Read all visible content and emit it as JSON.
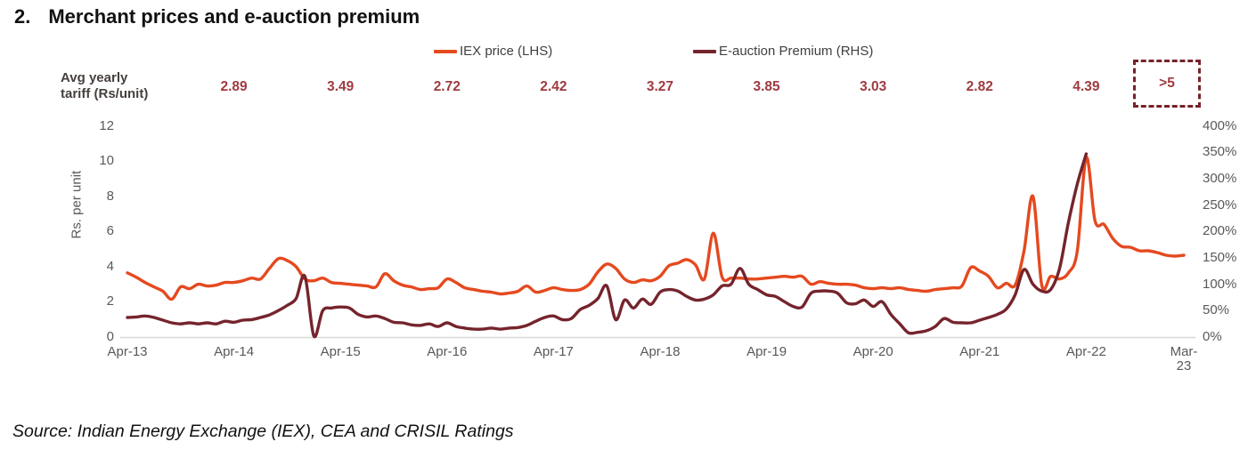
{
  "title": {
    "number": "2.",
    "text": "Merchant prices and e-auction premium"
  },
  "legend": [
    {
      "label": "IEX price (LHS)",
      "color": "#e5491f"
    },
    {
      "label": "E-auction Premium (RHS)",
      "color": "#75242c"
    }
  ],
  "tariff_row": {
    "label_line1": "Avg yearly",
    "label_line2": "tariff (Rs/unit)",
    "values": [
      "2.89",
      "3.49",
      "2.72",
      "2.42",
      "3.27",
      "3.85",
      "3.03",
      "2.82",
      "4.39"
    ],
    "boxed_value": ">5",
    "value_color": "#9f3a40"
  },
  "source": "Source: Indian Energy Exchange (IEX), CEA and CRISIL Ratings",
  "chart_data": {
    "type": "line",
    "title": "Merchant prices and e-auction premium",
    "x_start": "Apr-13",
    "x_tick_labels": [
      "Apr-13",
      "Apr-14",
      "Apr-15",
      "Apr-16",
      "Apr-17",
      "Apr-18",
      "Apr-19",
      "Apr-20",
      "Apr-21",
      "Apr-22",
      "Mar-23"
    ],
    "left_axis": {
      "label": "Rs. per unit",
      "min": 0,
      "max": 12,
      "ticks": [
        0,
        2,
        4,
        6,
        8,
        10,
        12
      ]
    },
    "right_axis": {
      "min": 0,
      "max": 400,
      "ticks": [
        0,
        50,
        100,
        150,
        200,
        250,
        300,
        350,
        400
      ],
      "suffix": "%"
    },
    "grid": false,
    "legend_position": "top",
    "series": [
      {
        "name": "IEX price (LHS)",
        "axis": "left",
        "color": "#e5491f",
        "unit": "Rs/unit",
        "monthly_from": "Apr-13",
        "values": [
          3.65,
          3.4,
          3.1,
          2.85,
          2.6,
          2.15,
          2.85,
          2.75,
          3.0,
          2.9,
          2.95,
          3.1,
          3.1,
          3.2,
          3.35,
          3.3,
          3.9,
          4.45,
          4.35,
          4.0,
          3.3,
          3.2,
          3.35,
          3.1,
          3.05,
          3.0,
          2.95,
          2.9,
          2.85,
          3.6,
          3.2,
          2.95,
          2.85,
          2.7,
          2.75,
          2.8,
          3.3,
          3.1,
          2.8,
          2.7,
          2.6,
          2.55,
          2.45,
          2.5,
          2.6,
          2.9,
          2.55,
          2.65,
          2.8,
          2.7,
          2.65,
          2.7,
          3.0,
          3.7,
          4.15,
          3.9,
          3.3,
          3.1,
          3.25,
          3.2,
          3.45,
          4.05,
          4.2,
          4.4,
          4.1,
          3.3,
          5.9,
          3.4,
          3.35,
          3.35,
          3.3,
          3.3,
          3.35,
          3.4,
          3.45,
          3.4,
          3.45,
          3.0,
          3.15,
          3.05,
          3.0,
          3.0,
          2.95,
          2.8,
          2.75,
          2.8,
          2.75,
          2.8,
          2.7,
          2.65,
          2.6,
          2.7,
          2.75,
          2.8,
          2.9,
          3.95,
          3.75,
          3.45,
          2.8,
          3.05,
          2.95,
          4.9,
          8.0,
          2.95,
          3.45,
          3.3,
          3.65,
          4.9,
          10.2,
          6.6,
          6.4,
          5.6,
          5.15,
          5.1,
          4.9,
          4.9,
          4.8,
          4.65,
          4.6,
          4.65
        ]
      },
      {
        "name": "E-auction Premium (RHS)",
        "axis": "right",
        "color": "#75242c",
        "unit": "%",
        "monthly_from": "Apr-13",
        "ends": "Apr-22",
        "values": [
          37,
          38,
          40,
          37,
          32,
          27,
          25,
          27,
          25,
          27,
          25,
          30,
          28,
          32,
          33,
          37,
          42,
          50,
          60,
          73,
          115,
          2,
          50,
          55,
          57,
          55,
          43,
          38,
          40,
          35,
          28,
          27,
          23,
          22,
          25,
          20,
          27,
          20,
          17,
          15,
          15,
          17,
          15,
          17,
          18,
          22,
          30,
          37,
          40,
          33,
          35,
          52,
          60,
          73,
          97,
          33,
          70,
          55,
          72,
          62,
          85,
          90,
          87,
          77,
          70,
          72,
          80,
          97,
          100,
          130,
          100,
          90,
          80,
          77,
          67,
          58,
          57,
          83,
          87,
          87,
          83,
          65,
          63,
          70,
          58,
          67,
          43,
          25,
          8,
          9,
          12,
          20,
          35,
          28,
          27,
          27,
          32,
          37,
          43,
          53,
          80,
          128,
          100,
          87,
          90,
          130,
          217,
          290,
          347
        ]
      }
    ]
  }
}
